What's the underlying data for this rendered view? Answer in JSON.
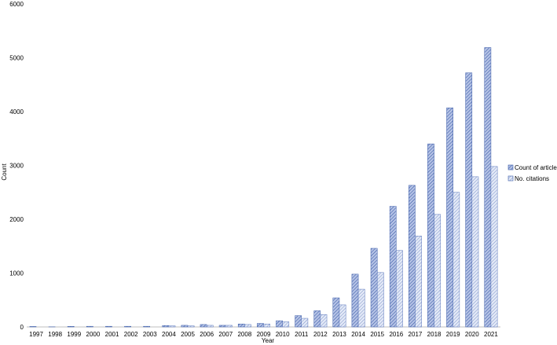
{
  "chart_data": {
    "type": "bar",
    "title": "",
    "xlabel": "Year",
    "ylabel": "Count",
    "ylim": [
      0,
      6000
    ],
    "yticks": [
      0,
      1000,
      2000,
      3000,
      4000,
      5000,
      6000
    ],
    "grid": false,
    "legend_position": "right",
    "categories": [
      "1997",
      "1998",
      "1999",
      "2000",
      "2001",
      "2002",
      "2003",
      "2004",
      "2005",
      "2006",
      "2007",
      "2008",
      "2009",
      "2010",
      "2011",
      "2012",
      "2013",
      "2014",
      "2015",
      "2016",
      "2017",
      "2018",
      "2019",
      "2020",
      "2021"
    ],
    "series": [
      {
        "name": "Count of articles",
        "color": "#3a5ba8",
        "fill": "#a9b8df",
        "values": [
          8,
          2,
          10,
          12,
          12,
          12,
          12,
          25,
          30,
          45,
          30,
          55,
          65,
          115,
          210,
          300,
          540,
          980,
          1460,
          2240,
          2630,
          3400,
          4070,
          4720,
          5190
        ]
      },
      {
        "name": "No. citations",
        "color": "#3a5ba8",
        "fill": "#d3dcf1",
        "values": [
          0,
          0,
          0,
          0,
          0,
          0,
          0,
          20,
          20,
          30,
          30,
          45,
          55,
          95,
          160,
          230,
          410,
          700,
          1010,
          1420,
          1690,
          2090,
          2500,
          2790,
          2980
        ]
      }
    ]
  }
}
